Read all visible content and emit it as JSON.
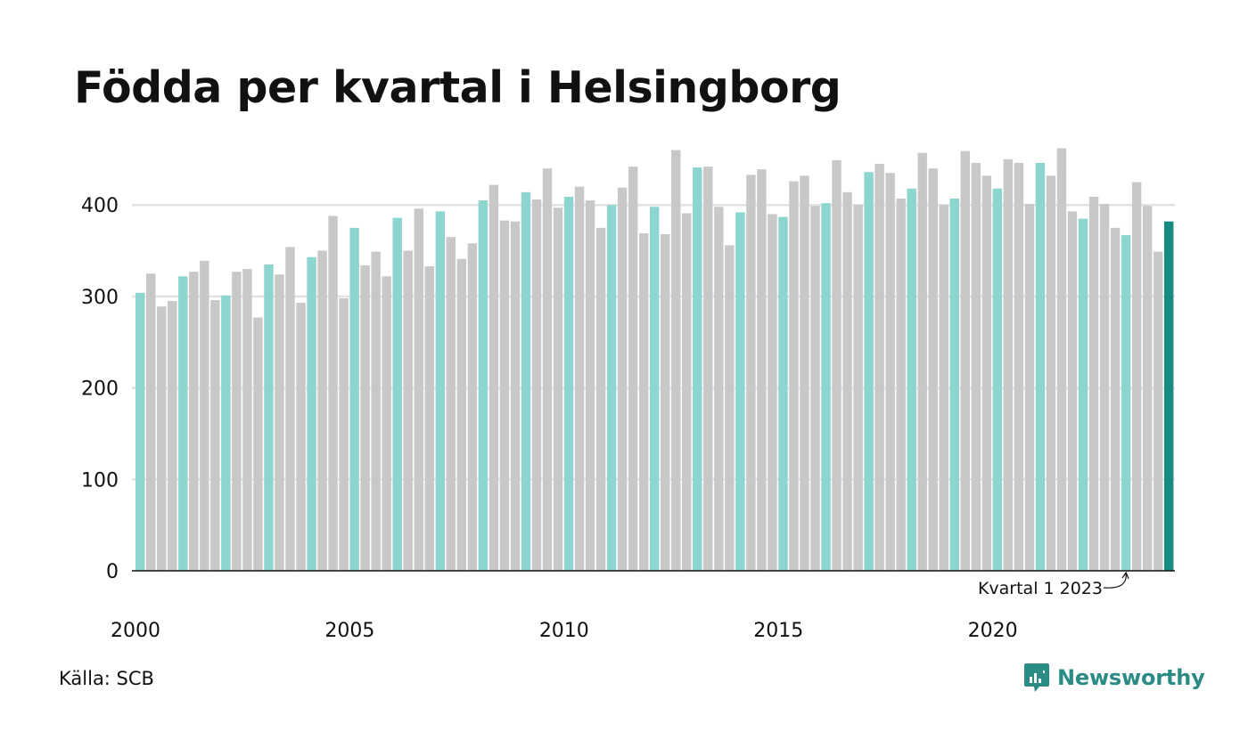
{
  "colors": {
    "bar_q1": "#8dd6cf",
    "bar_other": "#c8c8c8",
    "bar_highlight": "#168c80",
    "gridline": "#e3e3e3",
    "axis": "#111111",
    "brand": "#2a8c84"
  },
  "source": "Källa: SCB",
  "brand": {
    "name": "Newsworthy",
    "icon": "newsworthy-chart-bubble-icon"
  },
  "chart_data": {
    "type": "bar",
    "title": "Födda per kvartal i Helsingborg",
    "xlabel": "",
    "ylabel": "",
    "ylim": [
      0,
      460
    ],
    "yticks": [
      0,
      100,
      200,
      300,
      400
    ],
    "xtick_labels": [
      "2000",
      "2005",
      "2010",
      "2015",
      "2020"
    ],
    "xtick_years": [
      2000,
      2005,
      2010,
      2015,
      2020
    ],
    "grid": "horizontal",
    "start_year": 2000,
    "periods_per_year": 4,
    "series": [
      {
        "values": [
          304,
          325,
          289,
          295,
          322,
          327,
          339,
          296,
          301,
          327,
          330,
          277,
          335,
          324,
          354,
          293,
          343,
          350,
          388,
          298,
          375,
          334,
          349,
          322,
          386,
          350,
          396,
          333,
          393,
          365,
          341,
          358,
          405,
          422,
          383,
          382,
          414,
          406,
          440,
          397,
          409,
          420,
          405,
          375,
          400,
          419,
          442,
          369,
          398,
          368,
          460,
          391,
          441,
          442,
          398,
          356,
          392,
          433,
          439,
          390,
          387,
          426,
          432,
          399,
          402,
          449,
          414,
          400,
          436,
          445,
          435,
          407,
          418,
          457,
          440,
          400,
          407,
          459,
          446,
          432,
          418,
          450,
          446,
          401,
          446,
          432,
          462,
          393,
          385,
          409,
          401,
          375,
          367,
          425,
          399,
          349,
          382
        ]
      }
    ],
    "highlight": {
      "index": 96
    },
    "annotation": {
      "text": "Kvartal 1 2023",
      "index": 92
    }
  }
}
